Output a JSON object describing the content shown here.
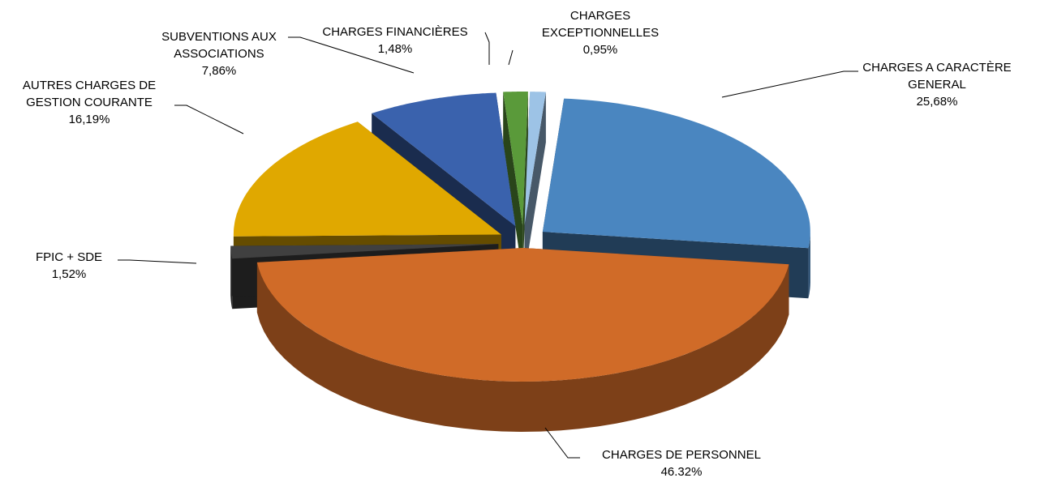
{
  "chart_data": {
    "type": "pie",
    "categories": [
      "CHARGES A CARACTÈRE GENERAL",
      "CHARGES DE PERSONNEL",
      "FPIC + SDE",
      "AUTRES CHARGES DE GESTION COURANTE",
      "SUBVENTIONS AUX ASSOCIATIONS",
      "CHARGES FINANCIÈRES",
      "CHARGES EXCEPTIONNELLES"
    ],
    "values": [
      25.68,
      46.32,
      1.52,
      16.19,
      7.86,
      1.48,
      0.95
    ],
    "value_labels": [
      "25,68%",
      "46.32%",
      "1,52%",
      "16,19%",
      "7,86%",
      "1,48%",
      "0,95%"
    ],
    "colors": [
      "#4a86c0",
      "#d06b28",
      "#404040",
      "#e0a800",
      "#3a62ad",
      "#5a9a3a",
      "#9dc3e6"
    ]
  }
}
